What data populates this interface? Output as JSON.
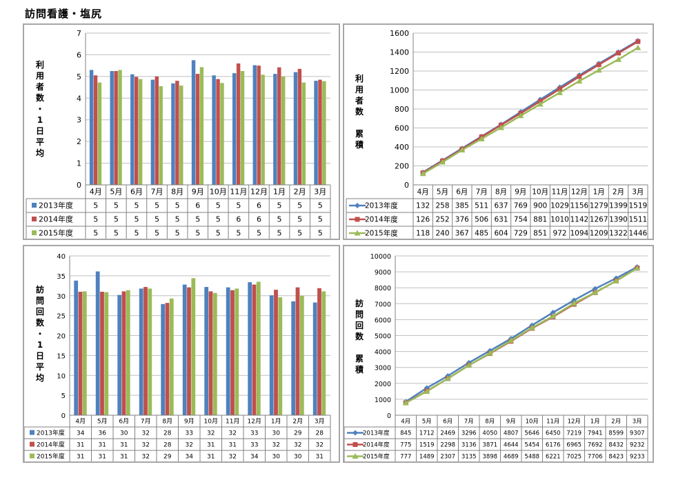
{
  "page": {
    "title": "訪問看護・塩尻"
  },
  "colors": {
    "s2013": "#4f81bd",
    "s2014": "#c0504d",
    "s2015": "#9bbb59",
    "grid": "#bfbfbf",
    "axis": "#808080"
  },
  "chart_data": [
    {
      "id": "users_daily",
      "type": "bar",
      "ylabel": "利用者数・1日平均",
      "ylim": [
        0,
        7
      ],
      "yticks": [
        0,
        1,
        2,
        3,
        4,
        5,
        6,
        7
      ],
      "categories": [
        "4月",
        "5月",
        "6月",
        "7月",
        "8月",
        "9月",
        "10月",
        "11月",
        "12月",
        "1月",
        "2月",
        "3月"
      ],
      "series": [
        {
          "name": "2013年度",
          "values": [
            5.3,
            5.25,
            5.1,
            4.85,
            4.68,
            5.75,
            5.05,
            5.15,
            5.52,
            5.12,
            5.2,
            4.8
          ],
          "labels": [
            "5",
            "5",
            "5",
            "5",
            "5",
            "6",
            "5",
            "5",
            "6",
            "5",
            "5",
            "5"
          ]
        },
        {
          "name": "2014年度",
          "values": [
            5.05,
            5.25,
            4.98,
            5.0,
            4.8,
            5.12,
            4.88,
            5.6,
            5.5,
            5.42,
            5.35,
            4.85
          ],
          "labels": [
            "5",
            "5",
            "5",
            "5",
            "5",
            "5",
            "5",
            "6",
            "6",
            "5",
            "5",
            "5"
          ]
        },
        {
          "name": "2015年度",
          "values": [
            4.72,
            5.3,
            4.88,
            4.55,
            4.58,
            5.43,
            4.7,
            5.25,
            5.08,
            5.0,
            4.72,
            4.78
          ],
          "labels": [
            "5",
            "5",
            "5",
            "5",
            "5",
            "5",
            "5",
            "5",
            "5",
            "5",
            "5",
            "5"
          ]
        }
      ],
      "grid": true,
      "legend": "table-bottom"
    },
    {
      "id": "users_cumulative",
      "type": "line",
      "ylabel": "利用者数 累積",
      "ylim": [
        0,
        1600
      ],
      "yticks": [
        0,
        200,
        400,
        600,
        800,
        1000,
        1200,
        1400,
        1600
      ],
      "categories": [
        "4月",
        "5月",
        "6月",
        "7月",
        "8月",
        "9月",
        "10月",
        "11月",
        "12月",
        "1月",
        "2月",
        "3月"
      ],
      "series": [
        {
          "name": "2013年度",
          "marker": "diamond",
          "values": [
            132,
            258,
            385,
            511,
            637,
            769,
            900,
            1029,
            1156,
            1279,
            1399,
            1519
          ]
        },
        {
          "name": "2014年度",
          "marker": "square",
          "values": [
            126,
            252,
            376,
            506,
            631,
            754,
            881,
            1010,
            1142,
            1267,
            1390,
            1511
          ]
        },
        {
          "name": "2015年度",
          "marker": "triangle",
          "values": [
            118,
            240,
            367,
            485,
            604,
            729,
            851,
            972,
            1094,
            1209,
            1322,
            1446
          ]
        }
      ],
      "grid": true,
      "legend": "table-bottom"
    },
    {
      "id": "visits_daily",
      "type": "bar",
      "ylabel": "訪問回数・1日平均",
      "ylim": [
        0,
        40
      ],
      "yticks": [
        0,
        5,
        10,
        15,
        20,
        25,
        30,
        35,
        40
      ],
      "categories": [
        "4月",
        "5月",
        "6月",
        "7月",
        "8月",
        "9月",
        "10月",
        "11月",
        "12月",
        "1月",
        "2月",
        "3月"
      ],
      "series": [
        {
          "name": "2013年度",
          "values": [
            33.8,
            36.1,
            30.2,
            31.8,
            27.9,
            32.8,
            32.2,
            32.1,
            33.4,
            30.1,
            28.6,
            28.3
          ],
          "labels": [
            "34",
            "36",
            "30",
            "32",
            "28",
            "33",
            "32",
            "32",
            "33",
            "30",
            "29",
            "28"
          ]
        },
        {
          "name": "2014年度",
          "values": [
            31.0,
            31.0,
            31.1,
            32.2,
            28.2,
            32.1,
            31.1,
            31.4,
            32.8,
            31.5,
            32.1,
            31.9
          ],
          "labels": [
            "31",
            "31",
            "31",
            "32",
            "28",
            "32",
            "31",
            "31",
            "33",
            "32",
            "32",
            "32"
          ]
        },
        {
          "name": "2015年度",
          "values": [
            31.1,
            30.9,
            31.4,
            31.8,
            29.3,
            34.4,
            30.7,
            31.8,
            33.5,
            29.6,
            30.0,
            31.1
          ],
          "labels": [
            "31",
            "31",
            "31",
            "32",
            "29",
            "34",
            "31",
            "32",
            "34",
            "30",
            "30",
            "31"
          ]
        }
      ],
      "grid": true,
      "legend": "table-bottom"
    },
    {
      "id": "visits_cumulative",
      "type": "line",
      "ylabel": "訪問回数 累積",
      "ylim": [
        0,
        10000
      ],
      "yticks": [
        0,
        1000,
        2000,
        3000,
        4000,
        5000,
        6000,
        7000,
        8000,
        9000,
        10000
      ],
      "categories": [
        "4月",
        "5月",
        "6月",
        "7月",
        "8月",
        "9月",
        "10月",
        "11月",
        "12月",
        "1月",
        "2月",
        "3月"
      ],
      "series": [
        {
          "name": "2013年度",
          "marker": "diamond",
          "values": [
            845,
            1712,
            2469,
            3296,
            4050,
            4807,
            5646,
            6450,
            7219,
            7941,
            8599,
            9307
          ]
        },
        {
          "name": "2014年度",
          "marker": "square",
          "values": [
            775,
            1519,
            2298,
            3136,
            3871,
            4644,
            5454,
            6176,
            6965,
            7692,
            8432,
            9232
          ]
        },
        {
          "name": "2015年度",
          "marker": "triangle",
          "values": [
            777,
            1489,
            2307,
            3135,
            3898,
            4689,
            5488,
            6221,
            7025,
            7706,
            8423,
            9233
          ]
        }
      ],
      "grid": true,
      "legend": "table-bottom"
    }
  ]
}
